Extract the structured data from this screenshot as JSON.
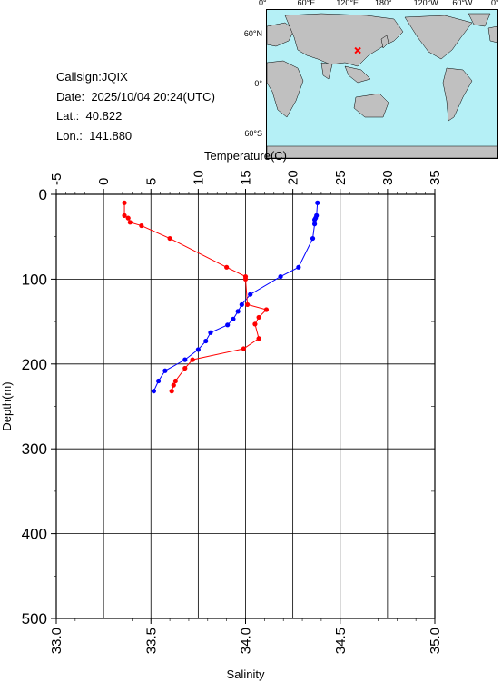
{
  "info": {
    "callsign": "Callsign:JQIX",
    "date_label": "Date:",
    "date_value": "2025/10/04 20:24(UTC)",
    "lat_label": "Lat.:",
    "lat_value": "40.822",
    "lon_label": "Lon.:",
    "lon_value": "141.880"
  },
  "map": {
    "lon_ticks": [
      "0°",
      "60°E",
      "120°E",
      "180°",
      "120°W",
      "60°W",
      "0°"
    ],
    "lat_ticks": [
      "60°N",
      "0°",
      "60°S"
    ],
    "ocean_color": "#b5f0f6",
    "land_color": "#c0c0c0",
    "marker_color": "#ff0000",
    "marker": {
      "lon": 141.88,
      "lat": 40.822
    }
  },
  "chart_data": {
    "type": "line",
    "top_axis": {
      "label": "Temperature(C)",
      "range": [
        -5,
        35
      ],
      "ticks": [
        "-5",
        "0",
        "5",
        "10",
        "15",
        "20",
        "25",
        "30",
        "35"
      ]
    },
    "bottom_axis": {
      "label": "Salinity",
      "range": [
        33.0,
        35.0
      ],
      "ticks": [
        "33.0",
        "33.5",
        "34.0",
        "34.5",
        "35.0"
      ]
    },
    "y_axis": {
      "label": "Depth(m)",
      "range": [
        0,
        500
      ],
      "inverted": true,
      "ticks": [
        "0",
        "100",
        "200",
        "300",
        "400",
        "500"
      ]
    },
    "grid": true,
    "series": [
      {
        "quantity": "temperature",
        "color": "#0000ff",
        "axis": "top",
        "points": [
          {
            "x": 22.6,
            "depth": 10
          },
          {
            "x": 22.5,
            "depth": 25
          },
          {
            "x": 22.4,
            "depth": 28
          },
          {
            "x": 22.3,
            "depth": 30
          },
          {
            "x": 22.3,
            "depth": 35
          },
          {
            "x": 22.1,
            "depth": 52
          },
          {
            "x": 20.6,
            "depth": 86
          },
          {
            "x": 18.7,
            "depth": 97
          },
          {
            "x": 15.5,
            "depth": 118
          },
          {
            "x": 14.6,
            "depth": 130
          },
          {
            "x": 14.2,
            "depth": 138
          },
          {
            "x": 13.7,
            "depth": 147
          },
          {
            "x": 13.1,
            "depth": 154
          },
          {
            "x": 11.3,
            "depth": 163
          },
          {
            "x": 10.8,
            "depth": 173
          },
          {
            "x": 10.0,
            "depth": 183
          },
          {
            "x": 8.6,
            "depth": 195
          },
          {
            "x": 6.5,
            "depth": 208
          },
          {
            "x": 5.8,
            "depth": 220
          },
          {
            "x": 5.3,
            "depth": 232
          }
        ]
      },
      {
        "quantity": "salinity",
        "color": "#ff0000",
        "axis": "bottom",
        "points": [
          {
            "x": 33.36,
            "depth": 10
          },
          {
            "x": 33.36,
            "depth": 25
          },
          {
            "x": 33.38,
            "depth": 28
          },
          {
            "x": 33.39,
            "depth": 33
          },
          {
            "x": 33.45,
            "depth": 37
          },
          {
            "x": 33.6,
            "depth": 52
          },
          {
            "x": 33.9,
            "depth": 86
          },
          {
            "x": 34.0,
            "depth": 97
          },
          {
            "x": 34.0,
            "depth": 100
          },
          {
            "x": 34.01,
            "depth": 130
          },
          {
            "x": 34.11,
            "depth": 136
          },
          {
            "x": 34.07,
            "depth": 145
          },
          {
            "x": 34.05,
            "depth": 153
          },
          {
            "x": 34.07,
            "depth": 170
          },
          {
            "x": 33.99,
            "depth": 182
          },
          {
            "x": 33.72,
            "depth": 195
          },
          {
            "x": 33.68,
            "depth": 205
          },
          {
            "x": 33.63,
            "depth": 220
          },
          {
            "x": 33.62,
            "depth": 225
          },
          {
            "x": 33.61,
            "depth": 232
          }
        ]
      }
    ]
  }
}
